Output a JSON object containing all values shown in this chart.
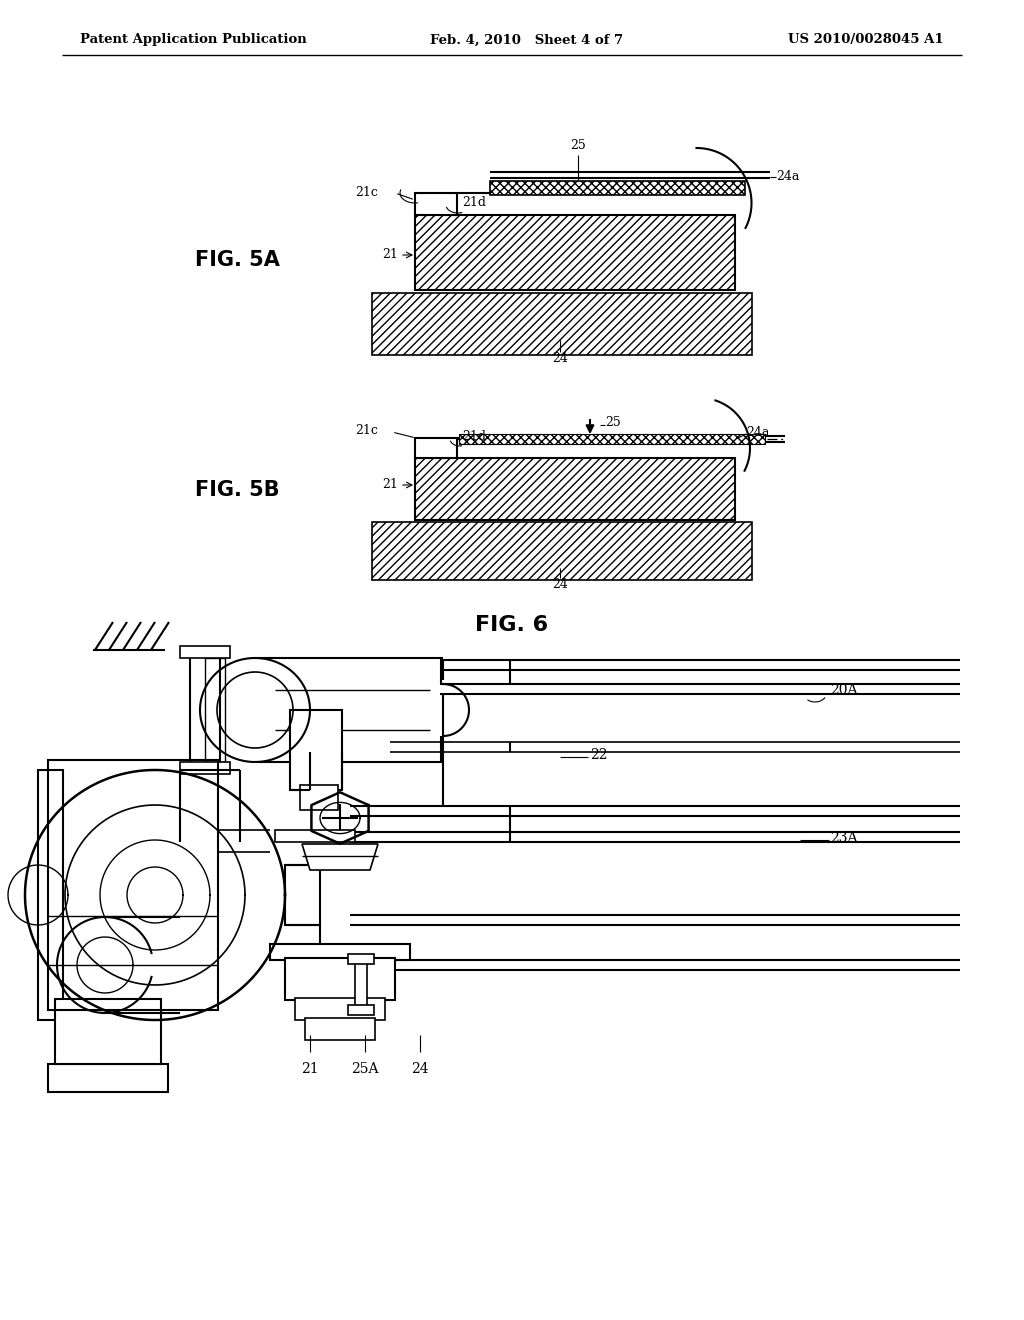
{
  "bg_color": "#ffffff",
  "header_left": "Patent Application Publication",
  "header_mid": "Feb. 4, 2010   Sheet 4 of 7",
  "header_right": "US 2010/0028045 A1",
  "fig5a_label": "FIG. 5A",
  "fig5b_label": "FIG. 5B",
  "fig6_label": "FIG. 6",
  "line_color": "#000000"
}
